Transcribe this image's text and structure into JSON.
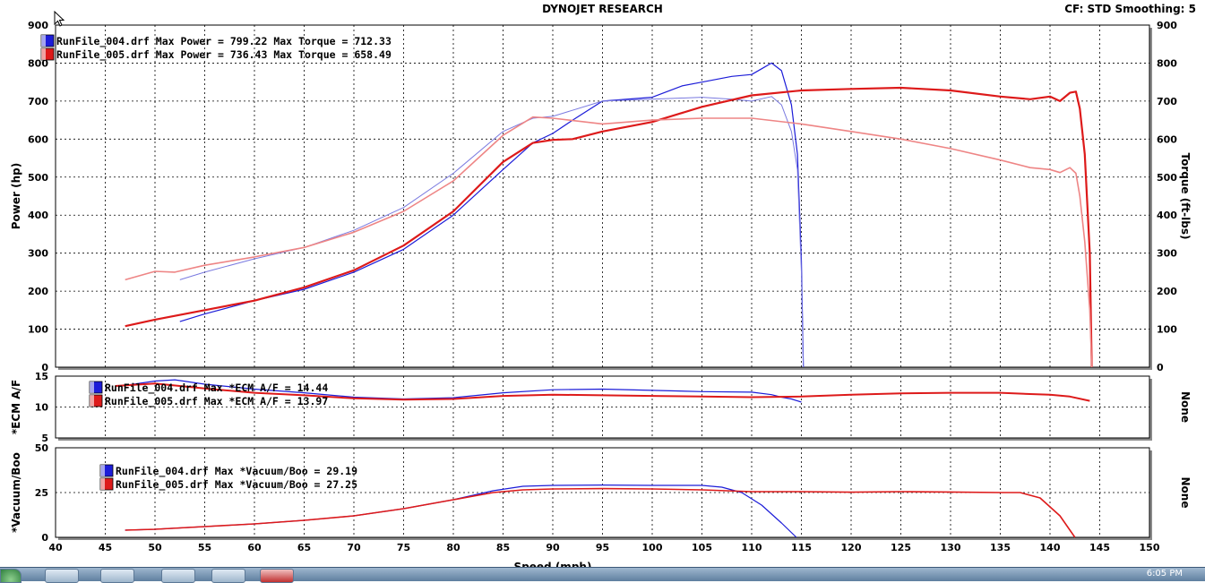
{
  "header": {
    "title": "DYNOJET RESEARCH",
    "cf_text": "CF: STD  Smoothing: 5"
  },
  "taskbar": {
    "clock": "6:05 PM"
  },
  "colors": {
    "run4": "#1c1cd8",
    "run5": "#dd1a1a",
    "run4_light": "#7a7ae0",
    "run5_light": "#ee8585"
  },
  "chart_data": [
    {
      "type": "line",
      "xlabel": "Speed (mph)",
      "ylabel": "Power (hp)",
      "y2label": "Torque (ft-lbs)",
      "xlim": [
        40,
        150
      ],
      "ylim": [
        0,
        900
      ],
      "y2lim": [
        0,
        900
      ],
      "yticks": [
        0,
        100,
        200,
        300,
        400,
        500,
        600,
        700,
        800,
        900
      ],
      "grid": true,
      "legend": [
        "RunFile_004.drf Max Power = 799.22 Max Torque = 712.33",
        "RunFile_005.drf Max Power = 736.43 Max Torque = 658.49"
      ],
      "series": [
        {
          "name": "RunFile_004.drf Power",
          "color": "#1c1cd8",
          "width": 1.2,
          "x": [
            52.5,
            55,
            60,
            65,
            70,
            75,
            80,
            85,
            88,
            90,
            92,
            95,
            100,
            103,
            105,
            108,
            110,
            111,
            112,
            113,
            114,
            114.6,
            115,
            115.2
          ],
          "y": [
            120,
            140,
            175,
            205,
            250,
            310,
            400,
            520,
            590,
            615,
            650,
            700,
            710,
            740,
            750,
            765,
            770,
            785,
            800,
            780,
            690,
            560,
            280,
            0
          ]
        },
        {
          "name": "RunFile_004.drf Torque",
          "color": "#7a7ae0",
          "width": 1.0,
          "x": [
            52.5,
            55,
            60,
            65,
            70,
            75,
            80,
            85,
            88,
            90,
            95,
            100,
            105,
            108,
            110,
            112,
            113,
            114,
            114.6,
            115,
            115.2
          ],
          "y": [
            230,
            250,
            285,
            315,
            360,
            420,
            510,
            620,
            655,
            660,
            700,
            705,
            710,
            705,
            700,
            712,
            690,
            620,
            520,
            250,
            0
          ]
        },
        {
          "name": "RunFile_005.drf Power",
          "color": "#dd1a1a",
          "width": 2.2,
          "x": [
            47,
            50,
            55,
            60,
            65,
            70,
            75,
            80,
            85,
            88,
            90,
            92,
            95,
            100,
            105,
            110,
            115,
            120,
            125,
            130,
            135,
            138,
            140,
            141,
            142,
            142.6,
            143,
            143.5,
            144,
            144.2
          ],
          "y": [
            108,
            125,
            150,
            175,
            210,
            255,
            320,
            410,
            540,
            590,
            598,
            600,
            620,
            645,
            685,
            715,
            728,
            732,
            735,
            728,
            712,
            705,
            712,
            700,
            722,
            725,
            680,
            560,
            300,
            0
          ]
        },
        {
          "name": "RunFile_005.drf Torque",
          "color": "#ee8585",
          "width": 1.6,
          "x": [
            47,
            50,
            52,
            55,
            60,
            65,
            70,
            75,
            80,
            85,
            88,
            90,
            95,
            100,
            105,
            110,
            115,
            120,
            125,
            130,
            135,
            138,
            140,
            141,
            142,
            142.6,
            143,
            143.5,
            144,
            144.2
          ],
          "y": [
            230,
            252,
            250,
            268,
            290,
            315,
            355,
            410,
            490,
            610,
            658,
            655,
            640,
            650,
            655,
            655,
            640,
            620,
            600,
            575,
            545,
            525,
            520,
            512,
            525,
            510,
            450,
            330,
            150,
            0
          ]
        }
      ]
    },
    {
      "type": "line",
      "ylabel": "*ECM A/F",
      "y2label": "None",
      "xlim": [
        40,
        150
      ],
      "ylim": [
        5,
        15
      ],
      "yticks": [
        5,
        10,
        15
      ],
      "grid": true,
      "legend": [
        "RunFile_004.drf Max *ECM A/F = 14.44",
        "RunFile_005.drf Max *ECM A/F = 13.97"
      ],
      "series": [
        {
          "name": "RunFile_004.drf *ECM A/F",
          "color": "#1c1cd8",
          "width": 1.2,
          "x": [
            47,
            50,
            52,
            55,
            60,
            65,
            70,
            75,
            80,
            85,
            90,
            95,
            100,
            105,
            110,
            112,
            113,
            114,
            115
          ],
          "y": [
            13.5,
            14.2,
            14.4,
            13.7,
            12.9,
            12.3,
            11.6,
            11.3,
            11.5,
            12.3,
            12.8,
            12.9,
            12.7,
            12.5,
            12.4,
            12.0,
            11.6,
            11.3,
            10.8
          ]
        },
        {
          "name": "RunFile_005.drf *ECM A/F",
          "color": "#dd1a1a",
          "width": 2.0,
          "x": [
            46,
            50,
            55,
            60,
            65,
            70,
            75,
            80,
            85,
            90,
            95,
            100,
            105,
            110,
            115,
            120,
            125,
            130,
            135,
            138,
            140,
            142,
            144
          ],
          "y": [
            13.4,
            13.8,
            13.0,
            12.3,
            11.9,
            11.4,
            11.2,
            11.3,
            11.8,
            12.0,
            11.9,
            11.8,
            11.7,
            11.6,
            11.7,
            12.0,
            12.2,
            12.3,
            12.3,
            12.1,
            12.0,
            11.7,
            11.0
          ]
        }
      ]
    },
    {
      "type": "line",
      "ylabel": "*Vacuum/Boo",
      "y2label": "None",
      "xlabel": "Speed (mph)",
      "xlim": [
        40,
        150
      ],
      "ylim": [
        0,
        50
      ],
      "yticks": [
        0,
        25,
        50
      ],
      "xticks": [
        40,
        45,
        50,
        55,
        60,
        65,
        70,
        75,
        80,
        85,
        90,
        95,
        100,
        105,
        110,
        115,
        120,
        125,
        130,
        135,
        140,
        145,
        150
      ],
      "grid": true,
      "legend": [
        "RunFile_004.drf Max *Vacuum/Boo = 29.19",
        "RunFile_005.drf Max *Vacuum/Boo = 27.25"
      ],
      "series": [
        {
          "name": "RunFile_004.drf *Vacuum/Boo",
          "color": "#1c1cd8",
          "width": 1.2,
          "x": [
            47,
            50,
            55,
            60,
            65,
            70,
            75,
            80,
            84,
            87,
            90,
            95,
            100,
            105,
            107,
            109,
            111,
            113,
            114.5
          ],
          "y": [
            4,
            4.5,
            6,
            7.5,
            9.5,
            12,
            16,
            21,
            26,
            28.5,
            29,
            29.2,
            29,
            29,
            28,
            25,
            18,
            8,
            0
          ]
        },
        {
          "name": "RunFile_005.drf *Vacuum/Boo",
          "color": "#dd1a1a",
          "width": 1.6,
          "x": [
            47,
            50,
            55,
            60,
            65,
            70,
            75,
            80,
            84,
            87,
            90,
            95,
            100,
            105,
            110,
            115,
            120,
            125,
            130,
            135,
            137,
            139,
            141,
            142.5
          ],
          "y": [
            4,
            4.5,
            6,
            7.5,
            9.5,
            12,
            16,
            21,
            25,
            26.5,
            27,
            27.2,
            27,
            26.5,
            25.5,
            25.5,
            25.2,
            25.5,
            25.3,
            25,
            25,
            22,
            12,
            0
          ]
        }
      ]
    }
  ]
}
